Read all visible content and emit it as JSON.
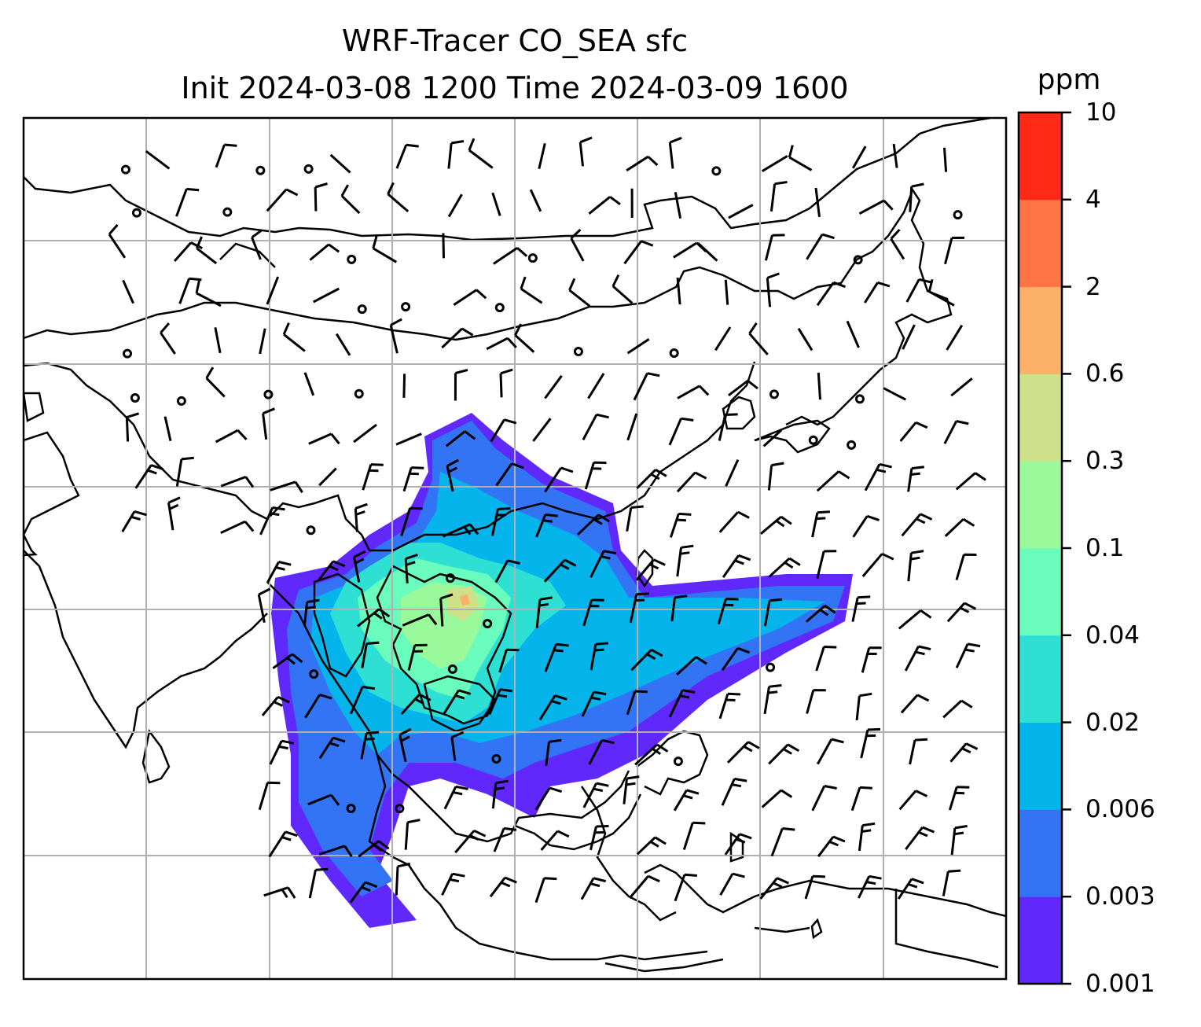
{
  "title": {
    "line1": "WRF-Tracer CO_SEA sfc",
    "line2": "Init 2024-03-08 1200 Time 2024-03-09 1600"
  },
  "colorbar": {
    "unit": "ppm",
    "tick_labels": [
      "0.001",
      "0.003",
      "0.006",
      "0.02",
      "0.04",
      "0.1",
      "0.3",
      "0.6",
      "2",
      "4",
      "10"
    ],
    "colors": [
      "#6128fc",
      "#3374f4",
      "#04b4ea",
      "#2ee0d4",
      "#6afcbc",
      "#9af99a",
      "#cfe08a",
      "#fdb06a",
      "#ff7445",
      "#ff2a16"
    ]
  },
  "map": {
    "projection_gridlines": "on",
    "wind_barbs": "black",
    "coastlines": "black"
  }
}
